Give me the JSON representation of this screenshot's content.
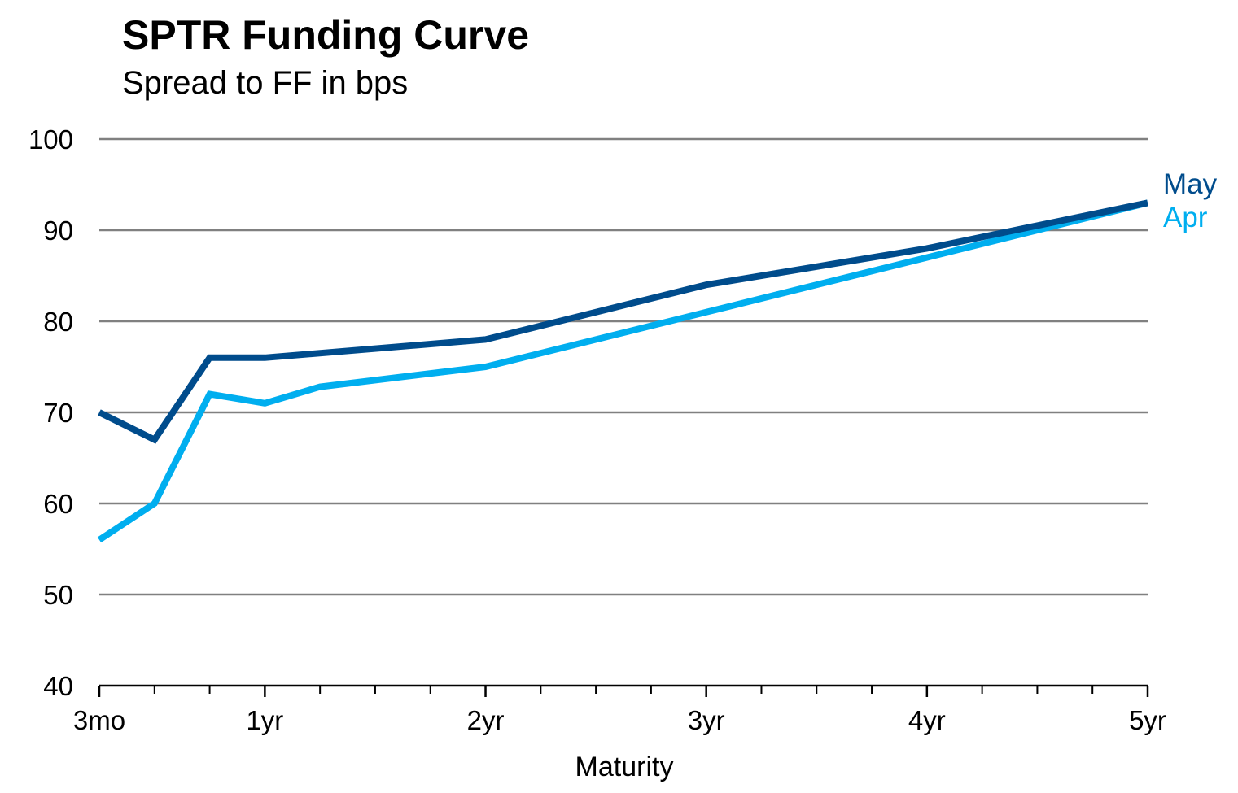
{
  "chart_data": {
    "type": "line",
    "title": "SPTR Funding Curve",
    "subtitle": "Spread to FF in bps",
    "xlabel": "Maturity",
    "ylabel": "",
    "ylim": [
      40,
      100
    ],
    "yticks": [
      40,
      50,
      60,
      70,
      80,
      90,
      100
    ],
    "xlim": [
      0.25,
      5
    ],
    "xtick_labels": [
      {
        "x": 0.25,
        "label": "3mo"
      },
      {
        "x": 1,
        "label": "1yr"
      },
      {
        "x": 2,
        "label": "2yr"
      },
      {
        "x": 3,
        "label": "3yr"
      },
      {
        "x": 4,
        "label": "4yr"
      },
      {
        "x": 5,
        "label": "5yr"
      }
    ],
    "minor_ticks": [
      0.5,
      0.75,
      1.25,
      1.5,
      1.75,
      2.25,
      2.5,
      2.75,
      3.25,
      3.5,
      3.75,
      4.25,
      4.5,
      4.75
    ],
    "grid": true,
    "legend": "right-end labels",
    "series": [
      {
        "name": "May",
        "color": "#004c8c",
        "x": [
          0.25,
          0.5,
          0.75,
          1,
          2,
          3,
          4,
          5
        ],
        "y": [
          70,
          67,
          76,
          76,
          78,
          84,
          88,
          93
        ]
      },
      {
        "name": "Apr",
        "color": "#00aeef",
        "x": [
          0.25,
          0.5,
          0.75,
          1,
          1.25,
          2,
          3,
          4,
          5
        ],
        "y": [
          56,
          60,
          72,
          71,
          72.8,
          75,
          81,
          87,
          93
        ]
      }
    ]
  }
}
